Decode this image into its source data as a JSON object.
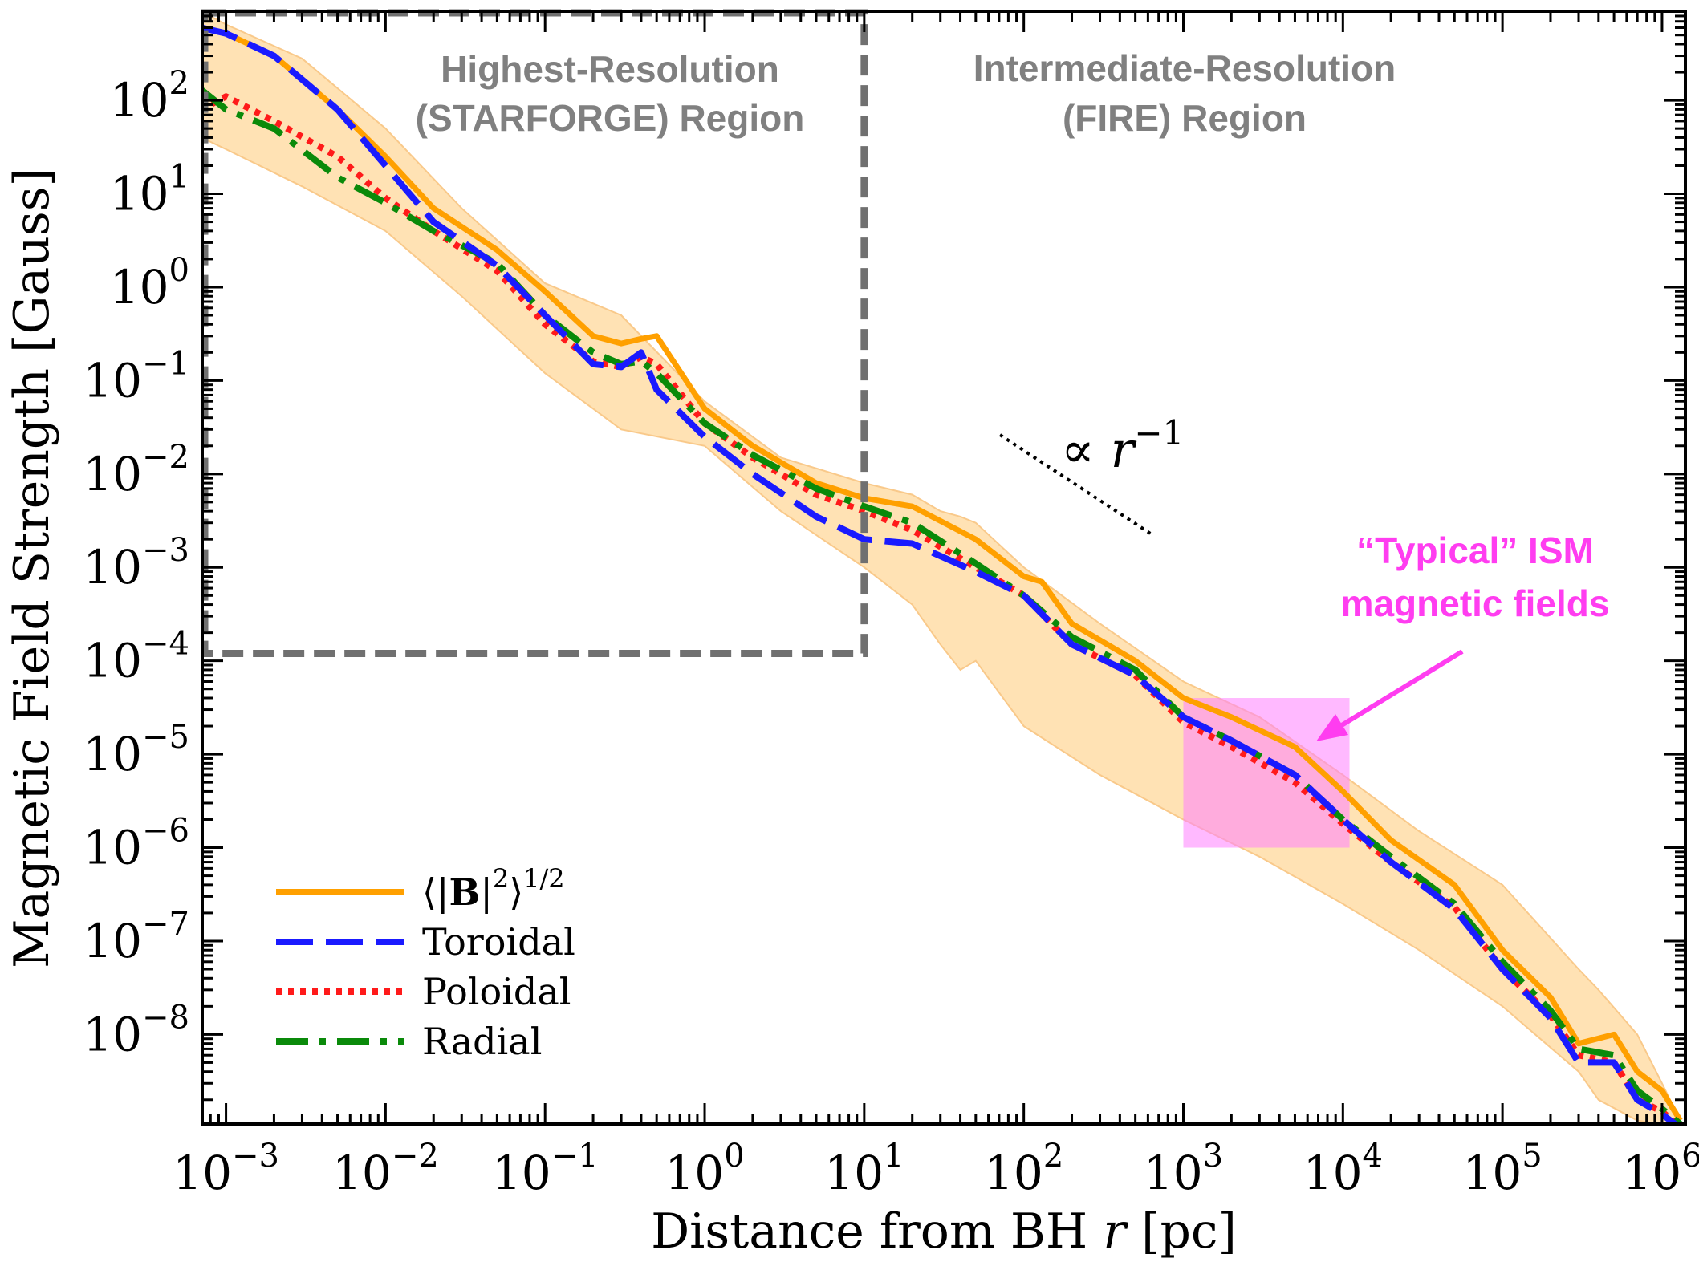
{
  "chart_data": {
    "type": "line",
    "xlabel_prefix": "Distance from BH ",
    "xlabel_var": "r",
    "xlabel_suffix": " [pc]",
    "ylabel": "Magnetic Field Strength [Gauss]",
    "xscale": "log",
    "yscale": "log",
    "xlim": [
      0.00071,
      1400000
    ],
    "ylim": [
      1.1e-09,
      900
    ],
    "x_ticks": [
      {
        "base": "10",
        "exp": "−3",
        "value": 0.001
      },
      {
        "base": "10",
        "exp": "−2",
        "value": 0.01
      },
      {
        "base": "10",
        "exp": "−1",
        "value": 0.1
      },
      {
        "base": "10",
        "exp": "0",
        "value": 1
      },
      {
        "base": "10",
        "exp": "1",
        "value": 10
      },
      {
        "base": "10",
        "exp": "2",
        "value": 100
      },
      {
        "base": "10",
        "exp": "3",
        "value": 1000
      },
      {
        "base": "10",
        "exp": "4",
        "value": 10000
      },
      {
        "base": "10",
        "exp": "5",
        "value": 100000
      },
      {
        "base": "10",
        "exp": "6",
        "value": 1000000
      }
    ],
    "y_ticks": [
      {
        "base": "10",
        "exp": "2",
        "value": 100
      },
      {
        "base": "10",
        "exp": "1",
        "value": 10
      },
      {
        "base": "10",
        "exp": "0",
        "value": 1
      },
      {
        "base": "10",
        "exp": "−1",
        "value": 0.1
      },
      {
        "base": "10",
        "exp": "−2",
        "value": 0.01
      },
      {
        "base": "10",
        "exp": "−3",
        "value": 0.001
      },
      {
        "base": "10",
        "exp": "−4",
        "value": 0.0001
      },
      {
        "base": "10",
        "exp": "−5",
        "value": 1e-05
      },
      {
        "base": "10",
        "exp": "−6",
        "value": 1e-06
      },
      {
        "base": "10",
        "exp": "−7",
        "value": 1e-07
      },
      {
        "base": "10",
        "exp": "−8",
        "value": 1e-08
      }
    ],
    "band": {
      "color": "#ffe2b4",
      "edge_color": "#f9c98a",
      "x": [
        0.0007,
        0.001,
        0.003,
        0.01,
        0.03,
        0.1,
        0.3,
        1,
        3,
        10,
        20,
        30,
        40,
        50,
        100,
        300,
        1000,
        3000,
        10000,
        30000,
        100000,
        300000,
        400000,
        700000,
        1000000,
        1300000
      ],
      "upper": [
        900,
        650,
        280,
        50,
        7,
        1.1,
        0.5,
        0.06,
        0.015,
        0.008,
        0.006,
        0.004,
        0.0035,
        0.003,
        0.001,
        0.00025,
        6e-05,
        2.5e-05,
        6e-06,
        1.5e-06,
        4e-07,
        5e-08,
        3e-08,
        1e-08,
        3e-09,
        1.2e-09
      ],
      "lower": [
        40,
        30,
        12,
        4,
        0.8,
        0.12,
        0.03,
        0.02,
        0.004,
        0.001,
        0.0004,
        0.00015,
        8e-05,
        0.0001,
        2e-05,
        6e-06,
        2e-06,
        8e-07,
        2.5e-07,
        8e-08,
        2e-08,
        4e-09,
        2e-09,
        1.2e-09,
        1.1e-09,
        1.1e-09
      ]
    },
    "series": [
      {
        "name": "⟨|B|²⟩^(1/2)",
        "color": "#ffa000",
        "style": "solid",
        "x": [
          0.0007,
          0.001,
          0.002,
          0.005,
          0.01,
          0.02,
          0.05,
          0.1,
          0.2,
          0.3,
          0.4,
          0.5,
          1,
          2,
          5,
          10,
          20,
          50,
          100,
          130,
          200,
          500,
          1000,
          2000,
          5000,
          10000,
          20000,
          50000,
          100000,
          200000,
          300000,
          500000,
          700000,
          1000000,
          1300000
        ],
        "y": [
          600,
          520,
          300,
          80,
          25,
          7,
          2.5,
          0.9,
          0.3,
          0.25,
          0.28,
          0.3,
          0.05,
          0.02,
          0.008,
          0.0055,
          0.0045,
          0.002,
          0.0008,
          0.0007,
          0.00025,
          0.0001,
          4e-05,
          2.5e-05,
          1.2e-05,
          4e-06,
          1.2e-06,
          4e-07,
          8e-08,
          2.5e-08,
          8e-09,
          1e-08,
          4e-09,
          2.5e-09,
          1.2e-09
        ]
      },
      {
        "name": "Toroidal",
        "color": "#1a1aff",
        "style": "dashed",
        "x": [
          0.0007,
          0.001,
          0.002,
          0.005,
          0.01,
          0.02,
          0.05,
          0.1,
          0.2,
          0.3,
          0.4,
          0.5,
          1,
          2,
          5,
          10,
          20,
          50,
          100,
          200,
          500,
          1000,
          2000,
          5000,
          10000,
          20000,
          50000,
          100000,
          200000,
          300000,
          500000,
          700000,
          1000000,
          1300000
        ],
        "y": [
          600,
          520,
          300,
          80,
          20,
          5,
          1.7,
          0.5,
          0.15,
          0.14,
          0.2,
          0.08,
          0.025,
          0.01,
          0.0035,
          0.002,
          0.0018,
          0.0009,
          0.0005,
          0.00015,
          7e-05,
          2.5e-05,
          1.4e-05,
          6e-06,
          2e-06,
          7e-07,
          2.2e-07,
          5e-08,
          1.5e-08,
          5e-09,
          5e-09,
          2e-09,
          1.4e-09,
          1e-09
        ]
      },
      {
        "name": "Poloidal",
        "color": "#ff1a1a",
        "style": "dotted",
        "x": [
          0.0007,
          0.001,
          0.002,
          0.005,
          0.01,
          0.02,
          0.05,
          0.1,
          0.2,
          0.3,
          0.4,
          0.5,
          1,
          2,
          5,
          10,
          20,
          50,
          100,
          200,
          500,
          1000,
          2000,
          5000,
          10000,
          20000,
          50000,
          100000,
          200000,
          300000,
          500000,
          700000,
          1000000,
          1300000
        ],
        "y": [
          80,
          110,
          60,
          25,
          9,
          4,
          1.5,
          0.4,
          0.16,
          0.14,
          0.18,
          0.15,
          0.035,
          0.015,
          0.006,
          0.004,
          0.0025,
          0.001,
          0.0005,
          0.00015,
          7e-05,
          2.2e-05,
          1.2e-05,
          5e-06,
          1.8e-06,
          7e-07,
          2.3e-07,
          5e-08,
          1.6e-08,
          6e-09,
          5e-09,
          2e-09,
          1.5e-09,
          1e-09
        ]
      },
      {
        "name": "Radial",
        "color": "#0a8a0a",
        "style": "dashdot",
        "x": [
          0.0007,
          0.001,
          0.002,
          0.005,
          0.01,
          0.02,
          0.05,
          0.1,
          0.2,
          0.3,
          0.4,
          0.5,
          1,
          2,
          5,
          10,
          20,
          50,
          100,
          200,
          500,
          1000,
          2000,
          5000,
          10000,
          20000,
          50000,
          100000,
          200000,
          300000,
          500000,
          700000,
          1000000,
          1300000
        ],
        "y": [
          130,
          80,
          50,
          15,
          8,
          4,
          1.8,
          0.5,
          0.2,
          0.15,
          0.16,
          0.12,
          0.035,
          0.016,
          0.007,
          0.0045,
          0.003,
          0.0011,
          0.0005,
          0.00018,
          8e-05,
          2.5e-05,
          1.4e-05,
          6e-06,
          2e-06,
          8e-07,
          2.5e-07,
          6e-08,
          1.8e-08,
          7e-09,
          6e-09,
          2.5e-09,
          1.6e-09,
          1.1e-09
        ]
      }
    ],
    "annotations": {
      "starforge_region": {
        "line1": "Highest-Resolution",
        "line2": "(STARFORGE) Region",
        "x_range": [
          0.00071,
          10
        ],
        "y_range": [
          0.00012,
          900
        ],
        "color": "#707070"
      },
      "fire_region": {
        "line1": "Intermediate-Resolution",
        "line2": "(FIRE) Region",
        "color": "#808080"
      },
      "ism_box": {
        "line1": "“Typical” ISM",
        "line2": "magnetic fields",
        "x_range": [
          1000,
          11000
        ],
        "y_range": [
          1e-06,
          4e-05
        ],
        "color": "#ff3df0",
        "fill": "#ff80ff"
      },
      "slope": {
        "label_prefix": "∝ ",
        "label_var": "r",
        "label_exp": "−1",
        "x_range": [
          100,
          1050
        ],
        "y_range": [
          0.08,
          0.006
        ]
      }
    },
    "legend": {
      "placement": "lower-left",
      "entries": [
        "⟨|B|²⟩^(1/2)",
        "Toroidal",
        "Poloidal",
        "Radial"
      ]
    }
  }
}
